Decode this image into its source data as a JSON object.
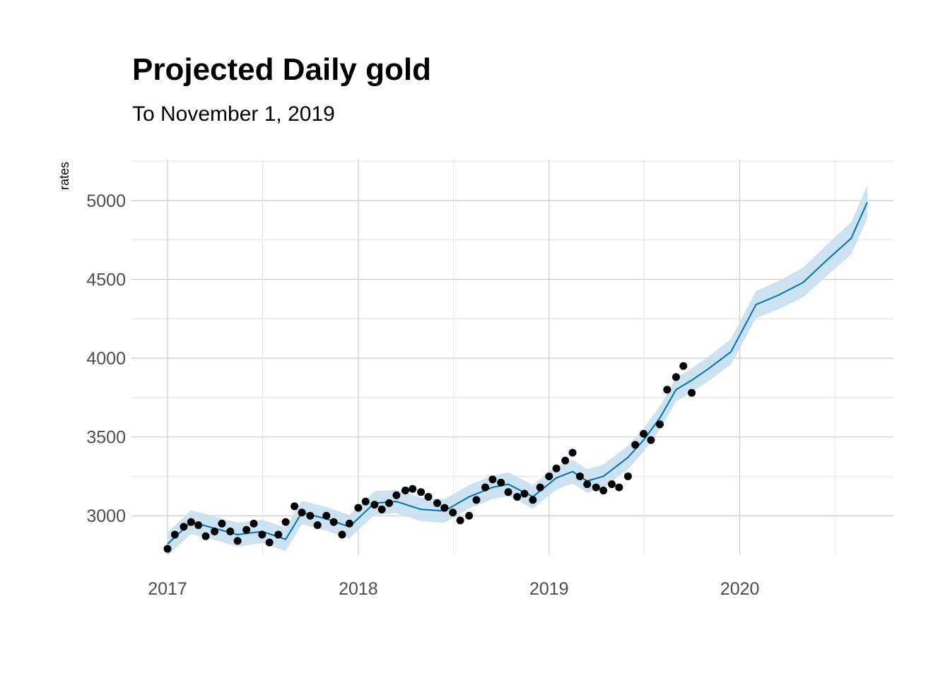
{
  "title": "Projected Daily gold",
  "subtitle": "To November 1, 2019",
  "chart_data": {
    "type": "scatter",
    "title": "Projected Daily gold",
    "subtitle": "To November 1, 2019",
    "xlabel": "",
    "ylabel": "rates",
    "xlim": [
      "2016-10-24",
      "2020-10-21"
    ],
    "ylim": [
      2750,
      5260
    ],
    "x_ticks": [
      "2017",
      "2018",
      "2019",
      "2020"
    ],
    "y_ticks": [
      3000,
      3500,
      4000,
      4500,
      5000
    ],
    "grid": true,
    "colors": {
      "points": "#000000",
      "forecast_line": "#0072B2",
      "interval_band": "#c6dff0"
    },
    "series": [
      {
        "type": "points",
        "x": [
          "2017-01-01",
          "2017-01-15",
          "2017-02-01",
          "2017-02-15",
          "2017-03-01",
          "2017-03-15",
          "2017-04-01",
          "2017-04-15",
          "2017-05-01",
          "2017-05-15",
          "2017-06-01",
          "2017-06-15",
          "2017-07-01",
          "2017-07-15",
          "2017-08-01",
          "2017-08-15",
          "2017-09-01",
          "2017-09-15",
          "2017-10-01",
          "2017-10-15",
          "2017-11-01",
          "2017-11-15",
          "2017-12-01",
          "2017-12-15",
          "2018-01-01",
          "2018-01-15",
          "2018-02-01",
          "2018-02-15",
          "2018-03-01",
          "2018-03-15",
          "2018-04-01",
          "2018-04-15",
          "2018-05-01",
          "2018-05-15",
          "2018-06-01",
          "2018-06-15",
          "2018-07-01",
          "2018-07-15",
          "2018-08-01",
          "2018-08-15",
          "2018-09-01",
          "2018-09-15",
          "2018-10-01",
          "2018-10-15",
          "2018-11-01",
          "2018-11-15",
          "2018-12-01",
          "2018-12-15",
          "2019-01-01",
          "2019-01-15",
          "2019-02-01",
          "2019-02-15",
          "2019-03-01",
          "2019-03-15",
          "2019-04-01",
          "2019-04-15",
          "2019-05-01",
          "2019-05-15",
          "2019-06-01",
          "2019-06-15",
          "2019-07-01",
          "2019-07-15",
          "2019-08-01",
          "2019-08-15",
          "2019-09-01",
          "2019-09-15",
          "2019-10-01"
        ],
        "y": [
          2790,
          2880,
          2930,
          2960,
          2940,
          2870,
          2900,
          2950,
          2900,
          2840,
          2910,
          2950,
          2880,
          2830,
          2880,
          2960,
          3060,
          3020,
          3000,
          2940,
          3000,
          2960,
          2880,
          2950,
          3050,
          3090,
          3070,
          3040,
          3080,
          3130,
          3160,
          3170,
          3150,
          3120,
          3080,
          3050,
          3020,
          2970,
          3000,
          3100,
          3180,
          3230,
          3210,
          3150,
          3120,
          3140,
          3100,
          3180,
          3250,
          3300,
          3350,
          3400,
          3250,
          3200,
          3180,
          3160,
          3200,
          3180,
          3250,
          3450,
          3520,
          3480,
          3580,
          3800,
          3880,
          3950,
          3780
        ]
      },
      {
        "type": "line",
        "x": [
          "2017-01-01",
          "2017-02-15",
          "2017-04-01",
          "2017-05-15",
          "2017-07-01",
          "2017-08-15",
          "2017-09-15",
          "2017-11-01",
          "2017-12-15",
          "2018-02-01",
          "2018-03-15",
          "2018-05-01",
          "2018-06-15",
          "2018-08-01",
          "2018-09-15",
          "2018-10-15",
          "2018-12-01",
          "2019-01-15",
          "2019-02-15",
          "2019-03-15",
          "2019-04-15",
          "2019-06-01",
          "2019-07-01",
          "2019-08-01",
          "2019-09-01",
          "2019-10-01",
          "2019-11-01",
          "2019-12-15",
          "2020-02-01",
          "2020-03-15",
          "2020-05-01",
          "2020-06-15",
          "2020-08-01",
          "2020-09-01"
        ],
        "y": [
          2820,
          2960,
          2920,
          2880,
          2900,
          2850,
          3020,
          2980,
          2930,
          3080,
          3090,
          3040,
          3030,
          3120,
          3180,
          3200,
          3120,
          3240,
          3280,
          3220,
          3250,
          3370,
          3480,
          3620,
          3800,
          3860,
          3930,
          4040,
          4340,
          4400,
          4480,
          4620,
          4760,
          4990
        ]
      }
    ]
  }
}
